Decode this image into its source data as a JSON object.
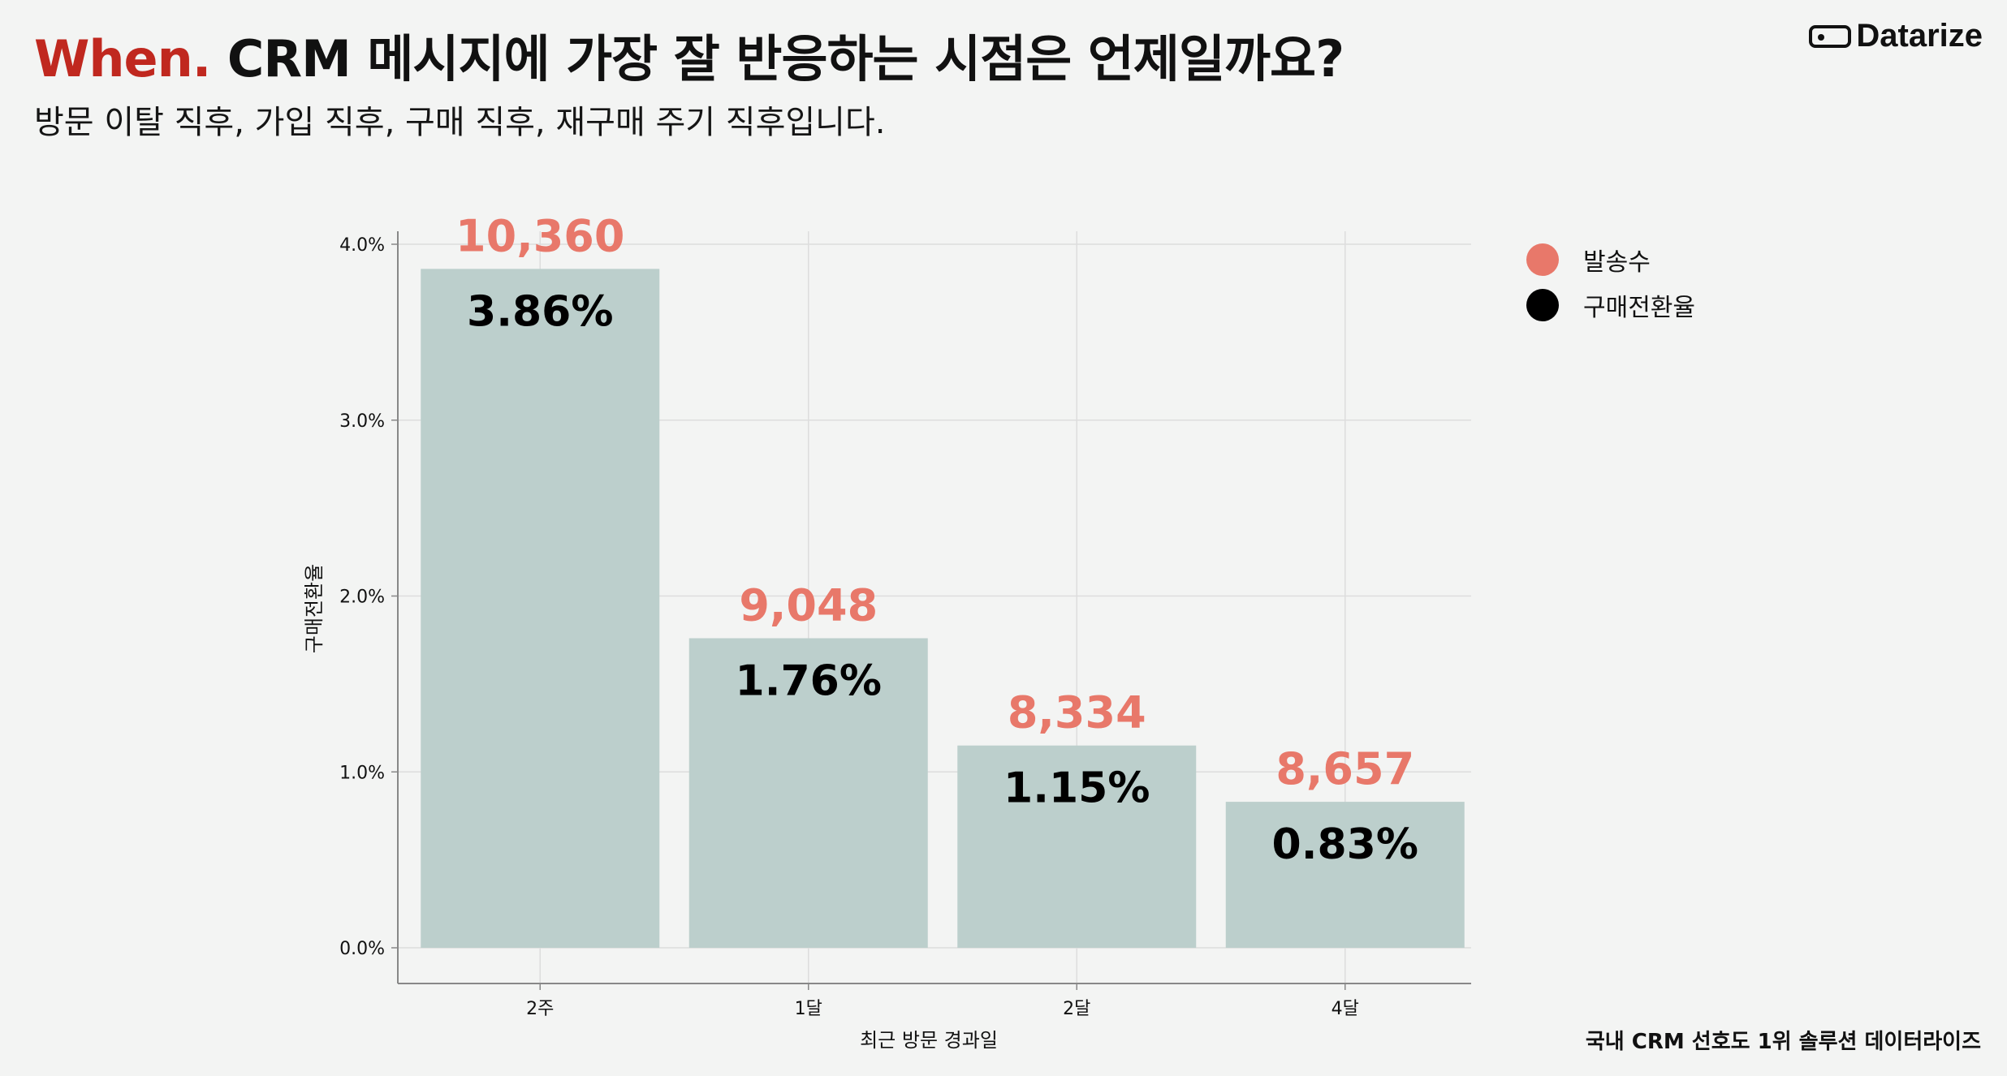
{
  "header": {
    "title_accent": "When.",
    "title_rest": " CRM 메시지에 가장 잘 반응하는 시점은 언제일까요?",
    "subtitle": "방문 이탈 직후, 가입 직후, 구매 직후, 재구매 주기 직후입니다.",
    "brand": "Datarize"
  },
  "footer": {
    "text": "국내 CRM 선호도 1위 솔루션 데이터라이즈"
  },
  "colors": {
    "accent": "#c0281f",
    "bar": "#bccfcc",
    "send_count": "#e8786a",
    "rate": "#000000",
    "grid": "#dddddd",
    "axis": "#888888"
  },
  "legend": [
    {
      "label": "발송수",
      "color": "#e8786a"
    },
    {
      "label": "구매전환율",
      "color": "#000000"
    }
  ],
  "chart_data": {
    "type": "bar",
    "categories": [
      "2주",
      "1달",
      "2달",
      "4달"
    ],
    "series": [
      {
        "name": "구매전환율",
        "values": [
          3.86,
          1.76,
          1.15,
          0.83
        ],
        "labels": [
          "3.86%",
          "1.76%",
          "1.15%",
          "0.83%"
        ]
      },
      {
        "name": "발송수",
        "values": [
          10360,
          9048,
          8334,
          8657
        ],
        "labels": [
          "10,360",
          "9,048",
          "8,334",
          "8,657"
        ]
      }
    ],
    "xlabel": "최근 방문 경과일",
    "ylabel": "구매전환율",
    "ylim": [
      0,
      4.0
    ],
    "yticks": [
      0,
      1,
      2,
      3,
      4
    ],
    "ytick_labels": [
      "0.0%",
      "1.0%",
      "2.0%",
      "3.0%",
      "4.0%"
    ],
    "grid": true,
    "legend_position": "top-right"
  }
}
